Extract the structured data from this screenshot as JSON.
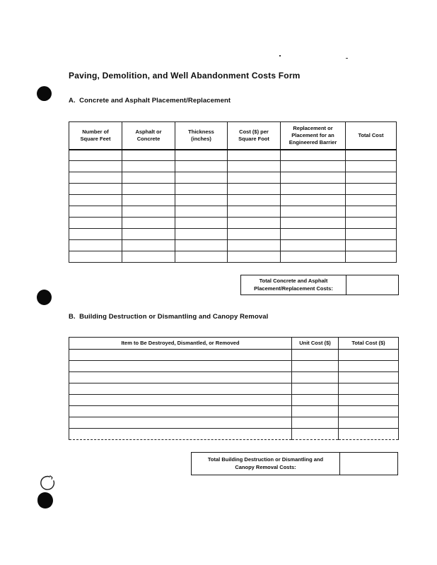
{
  "page": {
    "title": "Paving, Demolition, and Well Abandonment Costs Form"
  },
  "colors": {
    "ink": "#111111",
    "paper": "#ffffff"
  },
  "artifacts": [
    "punch-hole-dot",
    "punch-hole-dot",
    "pen-circle-mark",
    "punch-hole-dot",
    "ink-speck"
  ],
  "section_a": {
    "heading": "A.  Concrete and Asphalt Placement/Replacement",
    "table": {
      "headers": [
        "Number of\nSquare Feet",
        "Asphalt or\nConcrete",
        "Thickness\n(inches)",
        "Cost ($) per\nSquare Foot",
        "Replacement or\nPlacement for an\nEngineered Barrier",
        "Total Cost"
      ],
      "rows": 10,
      "cols": 6
    },
    "total_label": "Total Concrete and Asphalt\nPlacement/Replacement Costs:",
    "total_value": ""
  },
  "section_b": {
    "heading": "B.  Building Destruction or Dismantling and Canopy Removal",
    "table": {
      "headers": [
        "Item to Be Destroyed, Dismantled, or Removed",
        "Unit Cost ($)",
        "Total Cost ($)"
      ],
      "rows": 8,
      "cols": 3
    },
    "total_label": "Total Building Destruction or Dismantling and\nCanopy Removal Costs:",
    "total_value": ""
  }
}
